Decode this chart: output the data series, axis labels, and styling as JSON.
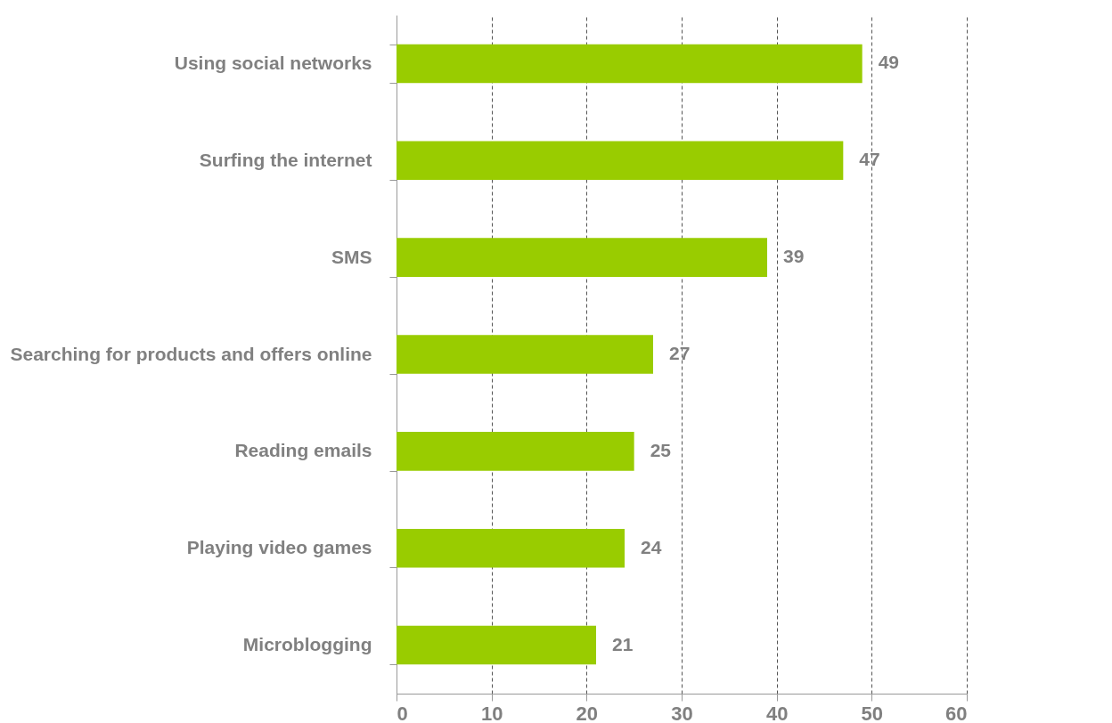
{
  "chart_data": {
    "type": "bar",
    "orientation": "horizontal",
    "categories": [
      "Using social networks",
      "Surfing the internet",
      "SMS",
      "Searching for products and offers online",
      "Reading emails",
      "Playing video games",
      "Microblogging"
    ],
    "values": [
      49,
      47,
      39,
      27,
      25,
      24,
      21
    ],
    "color": "#99cc00",
    "xlim": [
      0,
      60
    ],
    "xticks": [
      0,
      10,
      20,
      30,
      40,
      50,
      60
    ],
    "grid": "x",
    "data_labels": true
  }
}
